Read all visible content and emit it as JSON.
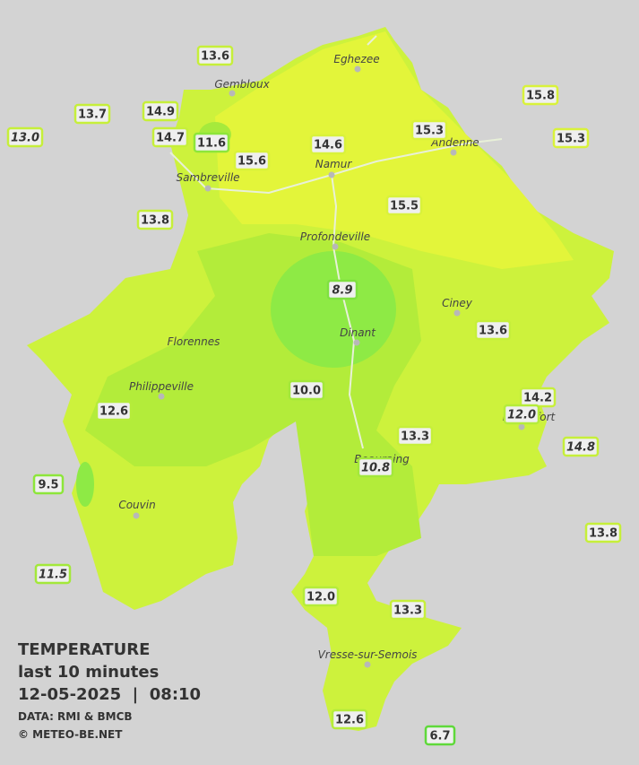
{
  "legend": {
    "title": "TEMPERATURE",
    "period": "last 10 minutes",
    "datetime": "12-05-2025  |  08:10",
    "source": "DATA: RMI & BMCB",
    "credit": "© METEO-BE.NET"
  },
  "towns": [
    "Eghezee",
    "Gembloux",
    "Andenne",
    "Namur",
    "Sambreville",
    "Profondeville",
    "Ciney",
    "Florennes",
    "Dinant",
    "Philippeville",
    "Rochefort",
    "Beauraing",
    "Couvin",
    "Vresse-sur-Semois"
  ],
  "stations": [
    {
      "label": "13.6",
      "italic": false,
      "color": "#c6ef3a"
    },
    {
      "label": "13.7",
      "italic": false,
      "color": "#c6ef3a"
    },
    {
      "label": "14.9",
      "italic": false,
      "color": "#c6ef3a"
    },
    {
      "label": "13.0",
      "italic": true,
      "color": "#c6ef3a"
    },
    {
      "label": "14.7",
      "italic": false,
      "color": "#c6ef3a"
    },
    {
      "label": "11.6",
      "italic": false,
      "color": "#8de63a"
    },
    {
      "label": "15.6",
      "italic": false,
      "color": "#d9f23a"
    },
    {
      "label": "14.6",
      "italic": false,
      "color": "#d9f23a"
    },
    {
      "label": "15.3",
      "italic": false,
      "color": "#d9f23a"
    },
    {
      "label": "15.8",
      "italic": false,
      "color": "#d9f23a"
    },
    {
      "label": "15.3",
      "italic": false,
      "color": "#d9f23a"
    },
    {
      "label": "13.8",
      "italic": false,
      "color": "#c6ef3a"
    },
    {
      "label": "15.5",
      "italic": false,
      "color": "#d9f23a"
    },
    {
      "label": "8.9",
      "italic": true,
      "color": "#7fe040"
    },
    {
      "label": "13.6",
      "italic": false,
      "color": "#c6ef3a"
    },
    {
      "label": "10.0",
      "italic": false,
      "color": "#a3e83a"
    },
    {
      "label": "14.2",
      "italic": false,
      "color": "#c6ef3a"
    },
    {
      "label": "12.0",
      "italic": true,
      "color": "#b5ec3a"
    },
    {
      "label": "12.6",
      "italic": false,
      "color": "#b5ec3a"
    },
    {
      "label": "13.3",
      "italic": false,
      "color": "#c6ef3a"
    },
    {
      "label": "14.8",
      "italic": true,
      "color": "#c6ef3a"
    },
    {
      "label": "10.8",
      "italic": true,
      "color": "#a3e83a"
    },
    {
      "label": "9.5",
      "italic": false,
      "color": "#8de63a"
    },
    {
      "label": "13.8",
      "italic": false,
      "color": "#c6ef3a"
    },
    {
      "label": "11.5",
      "italic": true,
      "color": "#a3e83a"
    },
    {
      "label": "12.0",
      "italic": false,
      "color": "#b5ec3a"
    },
    {
      "label": "13.3",
      "italic": false,
      "color": "#c6ef3a"
    },
    {
      "label": "12.6",
      "italic": false,
      "color": "#b5ec3a"
    },
    {
      "label": "6.7",
      "italic": false,
      "color": "#5fd93a"
    }
  ]
}
